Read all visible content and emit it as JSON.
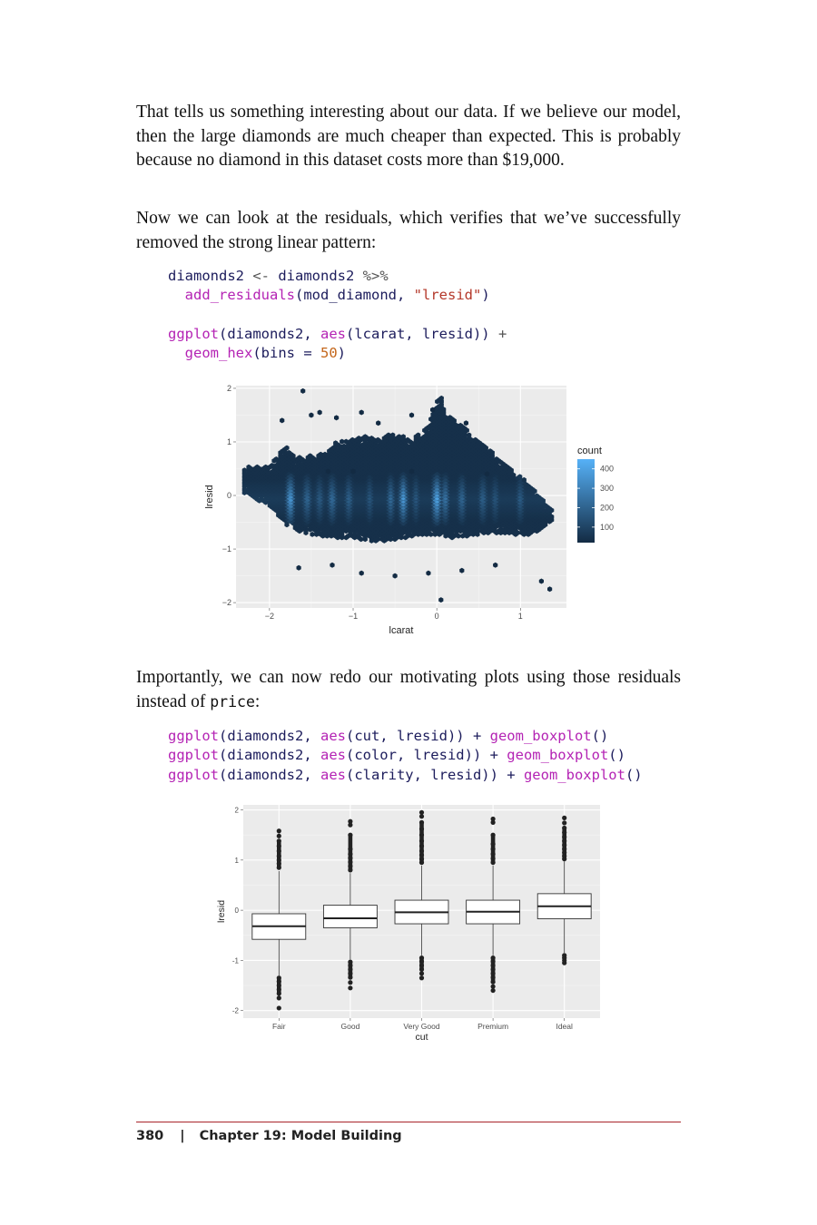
{
  "paragraphs": {
    "p1": "That tells us something interesting about our data. If we believe our model, then the large diamonds are much cheaper than expected. This is probably because no diamond in this dataset costs more than $19,000.",
    "p2": "Now we can look at the residuals, which verifies that we’ve successfully removed the strong linear pattern:",
    "p3_before": "Importantly, we can now redo our motivating plots using those residuals instead of ",
    "p3_code": "price",
    "p3_after": ":"
  },
  "code1": {
    "l1_id": "diamonds2",
    "l1_op": " <- ",
    "l1_id2": "diamonds2",
    "l1_pipe": " %>%",
    "l2_fn": "add_residuals",
    "l2_args": "(mod_diamond, ",
    "l2_str": "\"lresid\"",
    "l2_close": ")",
    "l3_fn": "ggplot",
    "l3_a": "(diamonds2, ",
    "l3_fn2": "aes",
    "l3_b": "(lcarat, lresid)) ",
    "l3_plus": "+",
    "l4_fn": "geom_hex",
    "l4_a": "(bins = ",
    "l4_num": "50",
    "l4_close": ")"
  },
  "code2": {
    "lines": [
      {
        "fn": "ggplot",
        "a": "(diamonds2, ",
        "fn2": "aes",
        "b": "(cut, lresid)) + ",
        "fn3": "geom_boxplot",
        "c": "()"
      },
      {
        "fn": "ggplot",
        "a": "(diamonds2, ",
        "fn2": "aes",
        "b": "(color, lresid)) + ",
        "fn3": "geom_boxplot",
        "c": "()"
      },
      {
        "fn": "ggplot",
        "a": "(diamonds2, ",
        "fn2": "aes",
        "b": "(clarity, lresid)) + ",
        "fn3": "geom_boxplot",
        "c": "()"
      }
    ]
  },
  "footer": {
    "page": "380",
    "sep": "|",
    "chapter": "Chapter 19: Model Building"
  },
  "chart_data": [
    {
      "type": "heatmap",
      "geom": "hex",
      "xlabel": "lcarat",
      "ylabel": "lresid",
      "xlim": [
        -2.4,
        1.55
      ],
      "ylim": [
        -2.1,
        2.05
      ],
      "xticks": [
        "-2",
        "-1",
        "0",
        "1"
      ],
      "yticks": [
        "-2",
        "-1",
        "0",
        "1",
        "2"
      ],
      "legend": {
        "title": "count",
        "ticks": [
          "100",
          "200",
          "300",
          "400"
        ],
        "position": "right",
        "colors": [
          "#132b43",
          "#56b1f7"
        ]
      },
      "regions": {
        "upper_x": [
          -2.0,
          -1.9,
          -1.8,
          -1.7,
          -1.5,
          -1.3,
          -1.2,
          -1.0,
          -0.85,
          -0.7,
          -0.55,
          -0.4,
          -0.3,
          -0.2,
          -0.1,
          0.0,
          0.05,
          0.1,
          0.25,
          0.4,
          0.55,
          0.7,
          0.85,
          1.0,
          1.15,
          1.35
        ],
        "upper_y": [
          0.55,
          0.75,
          0.95,
          0.7,
          0.75,
          0.8,
          1.0,
          1.05,
          1.1,
          1.05,
          1.15,
          1.1,
          1.0,
          1.2,
          1.3,
          1.75,
          1.9,
          1.5,
          1.4,
          1.15,
          0.95,
          0.75,
          0.55,
          0.35,
          0.15,
          -0.25
        ],
        "lower_x": [
          -2.3,
          -2.0,
          -1.8,
          -1.6,
          -1.4,
          -1.2,
          -1.0,
          -0.8,
          -0.6,
          -0.4,
          -0.2,
          0.0,
          0.2,
          0.4,
          0.6,
          0.8,
          1.0,
          1.2,
          1.35
        ],
        "lower_y": [
          0.05,
          -0.2,
          -0.55,
          -0.7,
          -0.75,
          -0.8,
          -0.8,
          -0.85,
          -0.85,
          -0.8,
          -0.75,
          -0.75,
          -0.8,
          -0.75,
          -0.7,
          -0.7,
          -0.75,
          -0.7,
          -0.5
        ],
        "bright_x": [
          -1.75,
          -1.55,
          -1.4,
          -1.25,
          -1.05,
          -0.8,
          -0.55,
          -0.4,
          -0.25,
          0.0,
          0.1,
          0.3,
          0.55,
          0.7,
          1.0
        ],
        "bright_weight": [
          0.9,
          0.5,
          0.4,
          0.55,
          0.45,
          0.35,
          0.5,
          0.85,
          0.35,
          1.0,
          0.6,
          0.5,
          0.45,
          0.35,
          0.4
        ],
        "outliers": [
          [
            -1.6,
            1.95
          ],
          [
            -1.85,
            1.4
          ],
          [
            -1.5,
            1.5
          ],
          [
            -1.4,
            1.55
          ],
          [
            -1.2,
            1.45
          ],
          [
            -0.9,
            1.55
          ],
          [
            -0.7,
            1.35
          ],
          [
            -0.3,
            1.5
          ],
          [
            -0.05,
            1.6
          ],
          [
            0.35,
            1.35
          ],
          [
            -1.65,
            -1.35
          ],
          [
            -1.25,
            -1.3
          ],
          [
            -0.9,
            -1.45
          ],
          [
            -0.5,
            -1.5
          ],
          [
            -0.1,
            -1.45
          ],
          [
            0.3,
            -1.4
          ],
          [
            0.7,
            -1.3
          ],
          [
            1.25,
            -1.6
          ],
          [
            1.35,
            -1.75
          ],
          [
            0.05,
            -1.95
          ],
          [
            -1.3,
            0.45
          ],
          [
            -1.0,
            0.45
          ],
          [
            -0.3,
            0.45
          ],
          [
            0.6,
            0.4
          ]
        ]
      }
    },
    {
      "type": "bar",
      "geom": "boxplot",
      "xlabel": "cut",
      "ylabel": "lresid",
      "ylim": [
        -2.15,
        2.1
      ],
      "yticks": [
        "-2",
        "-1",
        "0",
        "1",
        "2"
      ],
      "categories": [
        "Fair",
        "Good",
        "Very Good",
        "Premium",
        "Ideal"
      ],
      "boxes": [
        {
          "q1": -0.58,
          "median": -0.32,
          "q3": -0.07,
          "whisker_low": -1.3,
          "whisker_high": 0.78,
          "outliers_low": [
            -1.35,
            -1.42,
            -1.5,
            -1.58,
            -1.66,
            -1.75,
            -1.95
          ],
          "outliers_high": [
            0.85,
            0.93,
            1.0,
            1.08,
            1.18,
            1.28,
            1.38,
            1.48,
            1.58
          ]
        },
        {
          "q1": -0.35,
          "median": -0.16,
          "q3": 0.1,
          "whisker_low": -0.98,
          "whisker_high": 0.74,
          "outliers_low": [
            -1.03,
            -1.1,
            -1.18,
            -1.26,
            -1.34,
            -1.44,
            -1.55
          ],
          "outliers_high": [
            0.8,
            0.88,
            0.96,
            1.04,
            1.12,
            1.22,
            1.5,
            1.7,
            1.77
          ]
        },
        {
          "q1": -0.27,
          "median": -0.04,
          "q3": 0.2,
          "whisker_low": -0.9,
          "whisker_high": 0.89,
          "outliers_low": [
            -0.95,
            -1.02,
            -1.1,
            -1.18,
            -1.26,
            -1.35
          ],
          "outliers_high": [
            0.95,
            1.02,
            1.1,
            1.18,
            1.28,
            1.38,
            1.5,
            1.62,
            1.75,
            1.87,
            1.95
          ]
        },
        {
          "q1": -0.27,
          "median": -0.03,
          "q3": 0.2,
          "whisker_low": -0.9,
          "whisker_high": 0.89,
          "outliers_low": [
            -0.95,
            -1.02,
            -1.1,
            -1.18,
            -1.26,
            -1.34,
            -1.43,
            -1.52,
            -1.6
          ],
          "outliers_high": [
            0.95,
            1.03,
            1.12,
            1.22,
            1.32,
            1.5,
            1.75,
            1.82
          ]
        },
        {
          "q1": -0.17,
          "median": 0.08,
          "q3": 0.33,
          "whisker_low": -0.85,
          "whisker_high": 0.97,
          "outliers_low": [
            -0.9,
            -0.95,
            -1.0,
            -1.05
          ],
          "outliers_high": [
            1.02,
            1.08,
            1.15,
            1.22,
            1.3,
            1.38,
            1.46,
            1.55,
            1.64,
            1.74,
            1.84
          ]
        }
      ]
    }
  ]
}
